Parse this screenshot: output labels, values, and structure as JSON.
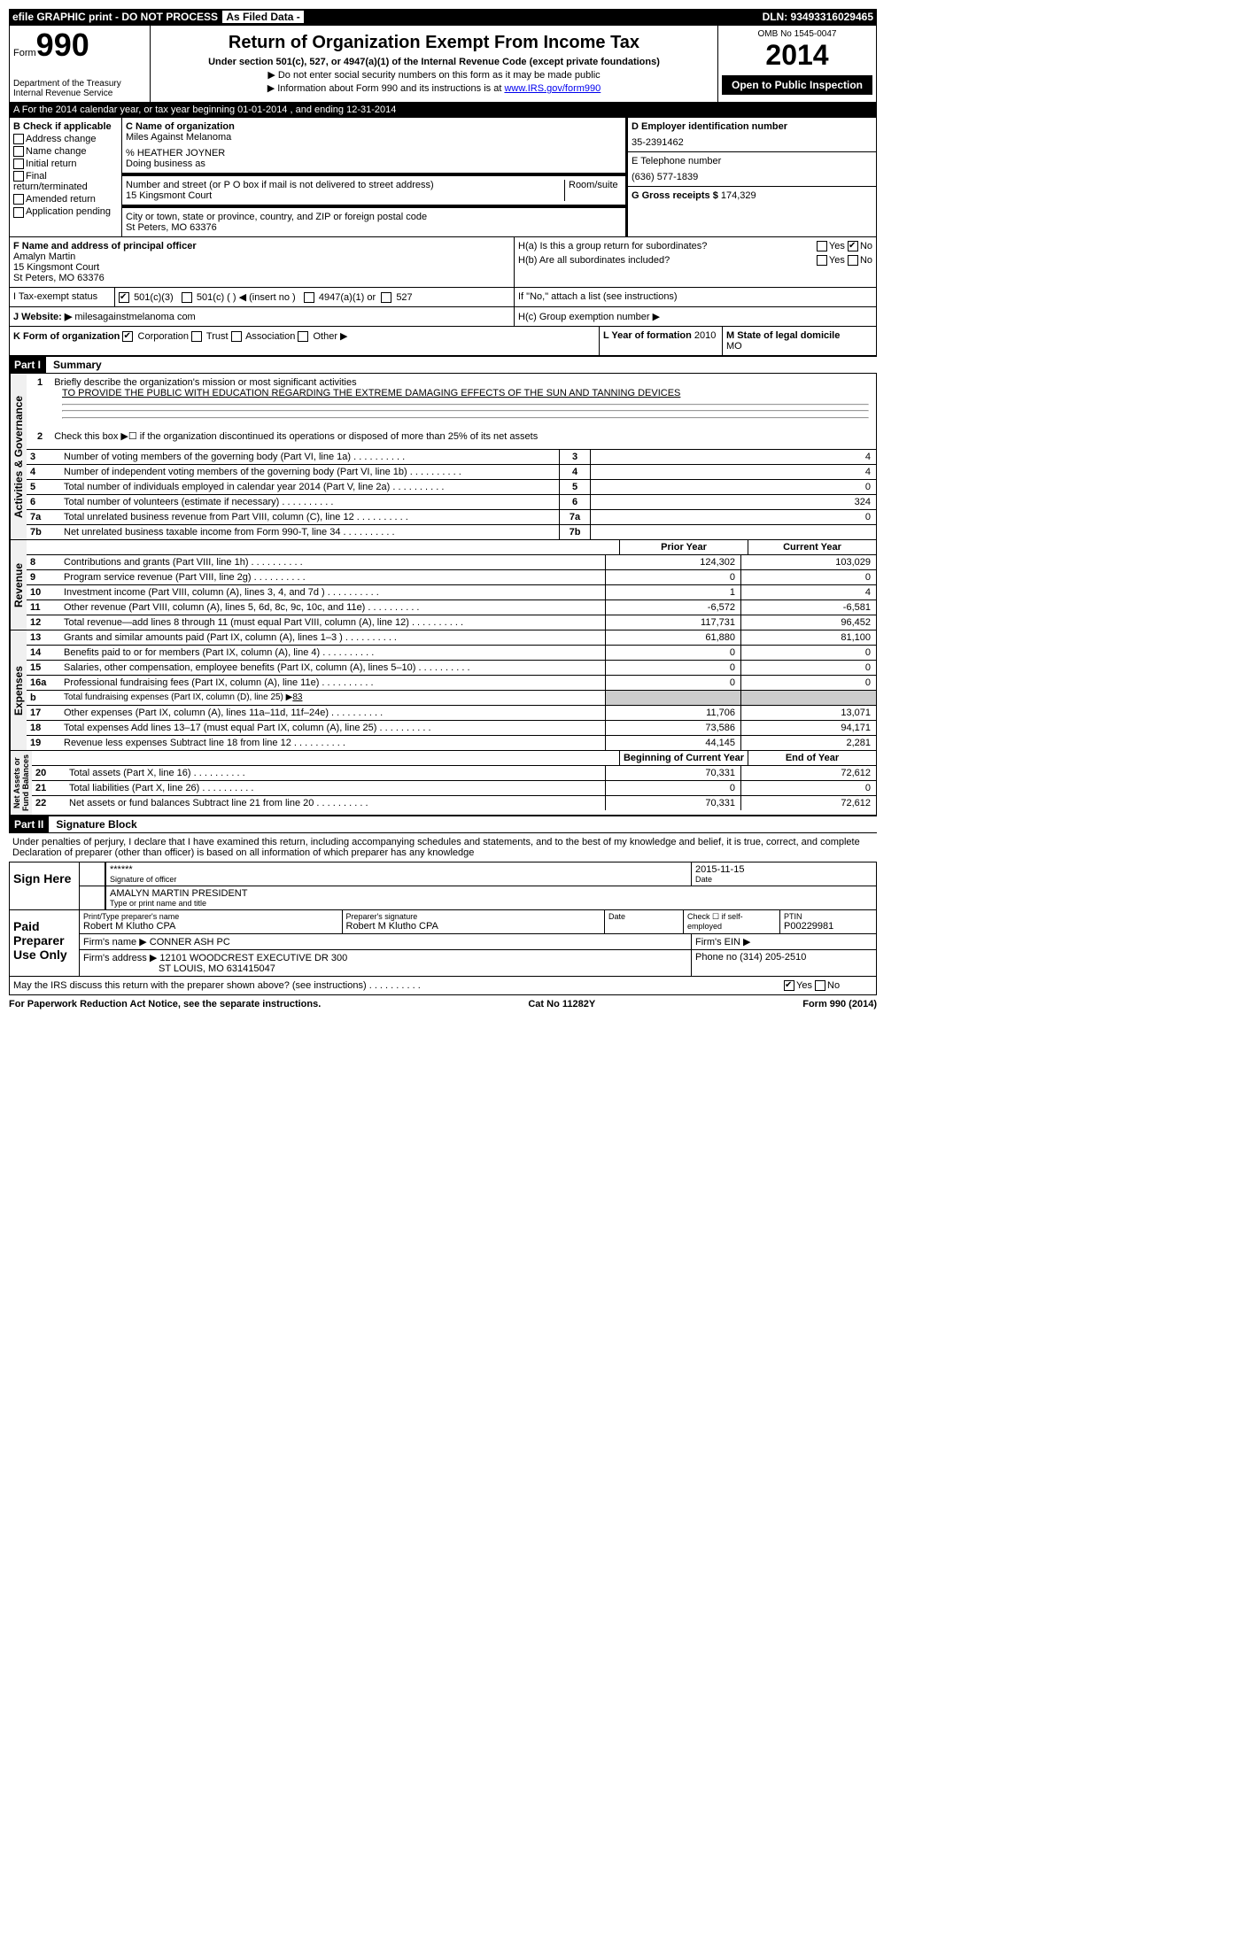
{
  "header": {
    "efile": "efile GRAPHIC print - DO NOT PROCESS",
    "asFiled": "As Filed Data -",
    "dln": "DLN: 93493316029465"
  },
  "top": {
    "formLabel": "Form",
    "formNum": "990",
    "dept": "Department of the Treasury",
    "irs": "Internal Revenue Service",
    "title": "Return of Organization Exempt From Income Tax",
    "subtitle": "Under section 501(c), 527, or 4947(a)(1) of the Internal Revenue Code (except private foundations)",
    "note1": "▶ Do not enter social security numbers on this form as it may be made public",
    "note2": "▶ Information about Form 990 and its instructions is at",
    "irsLink": "www.IRS.gov/form990",
    "omb": "OMB No 1545-0047",
    "year": "2014",
    "inspect": "Open to Public Inspection"
  },
  "sectionA": "A  For the 2014 calendar year, or tax year beginning 01-01-2014    , and ending 12-31-2014",
  "colB": {
    "header": "B  Check if applicable",
    "items": [
      "Address change",
      "Name change",
      "Initial return",
      "Final return/terminated",
      "Amended return",
      "Application pending"
    ]
  },
  "colC": {
    "nameLabel": "C Name of organization",
    "name": "Miles Against Melanoma",
    "co": "% HEATHER JOYNER",
    "dba": "Doing business as",
    "streetLabel": "Number and street (or P O  box if mail is not delivered to street address)",
    "room": "Room/suite",
    "street": "15 Kingsmont Court",
    "cityLabel": "City or town, state or province, country, and ZIP or foreign postal code",
    "city": "St Peters, MO  63376",
    "officerLabel": "F  Name and address of principal officer",
    "officer": "Amalyn Martin\n15 Kingsmont Court\nSt Peters, MO  63376"
  },
  "colD": {
    "einLabel": "D Employer identification number",
    "ein": "35-2391462",
    "telLabel": "E Telephone number",
    "tel": "(636) 577-1839",
    "grossLabel": "G Gross receipts $",
    "gross": "174,329"
  },
  "sectionH": {
    "ha": "H(a)  Is this a group return for subordinates?",
    "hb": "H(b)  Are all subordinates included?",
    "hbNote": "If \"No,\" attach a list  (see instructions)",
    "hc": "H(c)  Group exemption number ▶"
  },
  "rowI": {
    "label": "I  Tax-exempt status",
    "opt1": "501(c)(3)",
    "opt2": "501(c) (   ) ◀ (insert no )",
    "opt3": "4947(a)(1) or",
    "opt4": "527"
  },
  "rowJ": {
    "label": "J  Website: ▶",
    "value": "milesagainstmelanoma com"
  },
  "rowK": {
    "label": "K Form of organization",
    "opts": [
      "Corporation",
      "Trust",
      "Association",
      "Other ▶"
    ]
  },
  "rowL": {
    "label": "L Year of formation",
    "value": "2010",
    "mLabel": "M State of legal domicile",
    "mValue": "MO"
  },
  "part1": {
    "header": "Part I",
    "title": "Summary",
    "line1Label": "Briefly describe the organization's mission or most significant activities",
    "mission": "TO PROVIDE THE PUBLIC WITH EDUCATION REGARDING THE EXTREME DAMAGING EFFECTS OF THE SUN AND TANNING DEVICES",
    "line2": "Check this box ▶☐ if the organization discontinued its operations or disposed of more than 25% of its net assets",
    "lines": [
      {
        "n": "3",
        "t": "Number of voting members of the governing body (Part VI, line 1a)",
        "box": "3",
        "v": "4"
      },
      {
        "n": "4",
        "t": "Number of independent voting members of the governing body (Part VI, line 1b)",
        "box": "4",
        "v": "4"
      },
      {
        "n": "5",
        "t": "Total number of individuals employed in calendar year 2014 (Part V, line 2a)",
        "box": "5",
        "v": "0"
      },
      {
        "n": "6",
        "t": "Total number of volunteers (estimate if necessary)",
        "box": "6",
        "v": "324"
      },
      {
        "n": "7a",
        "t": "Total unrelated business revenue from Part VIII, column (C), line 12",
        "box": "7a",
        "v": "0"
      },
      {
        "n": "7b",
        "t": "Net unrelated business taxable income from Form 990-T, line 34",
        "box": "7b",
        "v": ""
      }
    ],
    "priorHeader": "Prior Year",
    "currentHeader": "Current Year",
    "revenue": [
      {
        "n": "8",
        "t": "Contributions and grants (Part VIII, line 1h)",
        "p": "124,302",
        "c": "103,029"
      },
      {
        "n": "9",
        "t": "Program service revenue (Part VIII, line 2g)",
        "p": "0",
        "c": "0"
      },
      {
        "n": "10",
        "t": "Investment income (Part VIII, column (A), lines 3, 4, and 7d )",
        "p": "1",
        "c": "4"
      },
      {
        "n": "11",
        "t": "Other revenue (Part VIII, column (A), lines 5, 6d, 8c, 9c, 10c, and 11e)",
        "p": "-6,572",
        "c": "-6,581"
      },
      {
        "n": "12",
        "t": "Total revenue—add lines 8 through 11 (must equal Part VIII, column (A), line 12)",
        "p": "117,731",
        "c": "96,452"
      }
    ],
    "expenses": [
      {
        "n": "13",
        "t": "Grants and similar amounts paid (Part IX, column (A), lines 1–3 )",
        "p": "61,880",
        "c": "81,100"
      },
      {
        "n": "14",
        "t": "Benefits paid to or for members (Part IX, column (A), line 4)",
        "p": "0",
        "c": "0"
      },
      {
        "n": "15",
        "t": "Salaries, other compensation, employee benefits (Part IX, column (A), lines 5–10)",
        "p": "0",
        "c": "0"
      },
      {
        "n": "16a",
        "t": "Professional fundraising fees (Part IX, column (A), line 11e)",
        "p": "0",
        "c": "0"
      }
    ],
    "line16b": {
      "n": "b",
      "t": "Total fundraising expenses (Part IX, column (D), line 25) ▶",
      "v": "83"
    },
    "expenses2": [
      {
        "n": "17",
        "t": "Other expenses (Part IX, column (A), lines 11a–11d, 11f–24e)",
        "p": "11,706",
        "c": "13,071"
      },
      {
        "n": "18",
        "t": "Total expenses  Add lines 13–17 (must equal Part IX, column (A), line 25)",
        "p": "73,586",
        "c": "94,171"
      },
      {
        "n": "19",
        "t": "Revenue less expenses  Subtract line 18 from line 12",
        "p": "44,145",
        "c": "2,281"
      }
    ],
    "begHeader": "Beginning of Current Year",
    "endHeader": "End of Year",
    "netassets": [
      {
        "n": "20",
        "t": "Total assets (Part X, line 16)",
        "p": "70,331",
        "c": "72,612"
      },
      {
        "n": "21",
        "t": "Total liabilities (Part X, line 26)",
        "p": "0",
        "c": "0"
      },
      {
        "n": "22",
        "t": "Net assets or fund balances  Subtract line 21 from line 20",
        "p": "70,331",
        "c": "72,612"
      }
    ]
  },
  "part2": {
    "header": "Part II",
    "title": "Signature Block",
    "declaration": "Under penalties of perjury, I declare that I have examined this return, including accompanying schedules and statements, and to the best of my knowledge and belief, it is true, correct, and complete  Declaration of preparer (other than officer) is based on all information of which preparer has any knowledge",
    "signHere": "Sign Here",
    "sigOfficer": "******",
    "sigOfficerLabel": "Signature of officer",
    "sigDate": "2015-11-15",
    "sigDateLabel": "Date",
    "printedName": "AMALYN MARTIN PRESIDENT",
    "printedLabel": "Type or print name and title",
    "paidPrep": "Paid Preparer Use Only",
    "prepName": "Robert M Klutho CPA",
    "prepNameLabel": "Print/Type preparer's name",
    "prepSig": "Robert M Klutho CPA",
    "prepSigLabel": "Preparer's signature",
    "prepDateLabel": "Date",
    "selfEmp": "Check ☐ if self-employed",
    "ptin": "P00229981",
    "ptinLabel": "PTIN",
    "firmName": "CONNER ASH PC",
    "firmNameLabel": "Firm's name   ▶",
    "firmEin": "Firm's EIN ▶",
    "firmAddr": "12101 WOODCREST EXECUTIVE DR 300",
    "firmAddrLabel": "Firm's address ▶",
    "firmCity": "ST LOUIS, MO  631415047",
    "firmPhone": "Phone no  (314) 205-2510",
    "discuss": "May the IRS discuss this return with the preparer shown above? (see instructions)"
  },
  "footer": {
    "left": "For Paperwork Reduction Act Notice, see the separate instructions.",
    "mid": "Cat No  11282Y",
    "right": "Form 990 (2014)"
  }
}
